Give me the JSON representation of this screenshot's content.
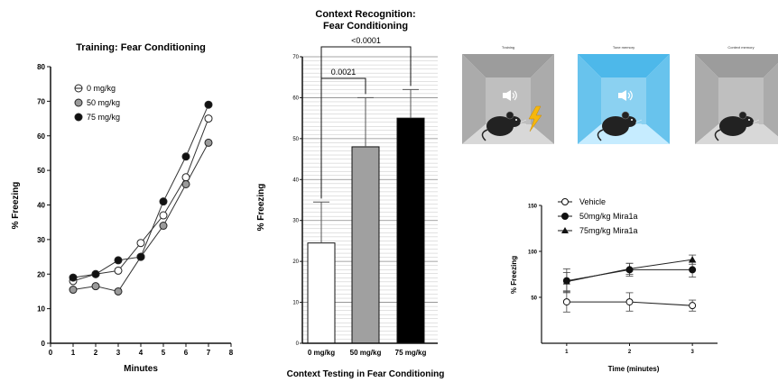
{
  "chart_data": [
    {
      "type": "line",
      "title": "Training: Fear Conditioning",
      "xlabel": "Minutes",
      "ylabel": "% Freezing",
      "xlim": [
        0,
        8
      ],
      "ylim": [
        0,
        80
      ],
      "x_ticks": [
        "0",
        "1",
        "2",
        "3",
        "4",
        "5",
        "6",
        "7",
        "8"
      ],
      "y_ticks": [
        "0",
        "10",
        "20",
        "30",
        "40",
        "50",
        "60",
        "70",
        "80"
      ],
      "legend_position": "top-left",
      "x": [
        1,
        2,
        3,
        4,
        5,
        6,
        7
      ],
      "series": [
        {
          "name": "0 mg/kg",
          "marker": "open-circle",
          "color": "#ffffff",
          "values": [
            18,
            20,
            21,
            29,
            37,
            48,
            65
          ]
        },
        {
          "name": "50 mg/kg",
          "marker": "gray-circle",
          "color": "#9a9a9a",
          "values": [
            15.5,
            16.5,
            15,
            25,
            34,
            46,
            58
          ]
        },
        {
          "name": "75 mg/kg",
          "marker": "filled-circle",
          "color": "#111111",
          "values": [
            19,
            20,
            24,
            25,
            41,
            54,
            69
          ]
        }
      ]
    },
    {
      "type": "bar",
      "title": "Context Recognition:",
      "subtitle": "Fear Conditioning",
      "xlabel": "Context Testing in Fear Conditioning",
      "ylabel": "% Freezing",
      "ylim": [
        0,
        70
      ],
      "y_ticks": [
        "0",
        "10",
        "20",
        "30",
        "40",
        "50",
        "60",
        "70"
      ],
      "grid": true,
      "categories": [
        "0 mg/kg",
        "50 mg/kg",
        "75 mg/kg"
      ],
      "values": [
        24.5,
        48,
        55
      ],
      "errors": [
        10,
        12,
        7
      ],
      "colors": [
        "#ffffff",
        "#a0a0a0",
        "#000000"
      ],
      "annotations": [
        {
          "label": "<0.0001",
          "between": [
            0,
            2
          ]
        },
        {
          "label": "0.0021",
          "between": [
            0,
            1
          ]
        }
      ]
    },
    {
      "type": "line",
      "title": "",
      "xlabel": "Time (minutes)",
      "ylabel": "% Freezing",
      "xlim": [
        0.6,
        3.4
      ],
      "ylim": [
        0,
        150
      ],
      "x_ticks": [
        "1",
        "2",
        "3"
      ],
      "y_ticks": [
        "50",
        "100",
        "150"
      ],
      "legend_position": "top-left",
      "x": [
        1,
        2,
        3
      ],
      "series": [
        {
          "name": "Vehicle",
          "marker": "open-circle",
          "values": [
            45,
            45,
            41
          ],
          "errors": [
            11,
            10,
            6
          ]
        },
        {
          "name": "50mg/kg Mira1a",
          "marker": "filled-circle",
          "values": [
            68,
            80,
            80
          ],
          "errors": [
            13,
            7,
            8
          ]
        },
        {
          "name": "75mg/kg Mira1a",
          "marker": "filled-triangle",
          "values": [
            67,
            81,
            91
          ],
          "errors": [
            10,
            6,
            5
          ]
        }
      ]
    }
  ],
  "illustrations": {
    "panels": [
      {
        "caption": "Training",
        "wall_color": "#9c9c9c",
        "floor_color": "#d8d8d8",
        "sound": true,
        "shock": true
      },
      {
        "caption": "Tone memory",
        "wall_color": "#4db8ea",
        "floor_color": "#c6ecff",
        "sound": true,
        "shock": false
      },
      {
        "caption": "Context memory",
        "wall_color": "#9c9c9c",
        "floor_color": "#d8d8d8",
        "sound": false,
        "shock": false
      }
    ]
  }
}
